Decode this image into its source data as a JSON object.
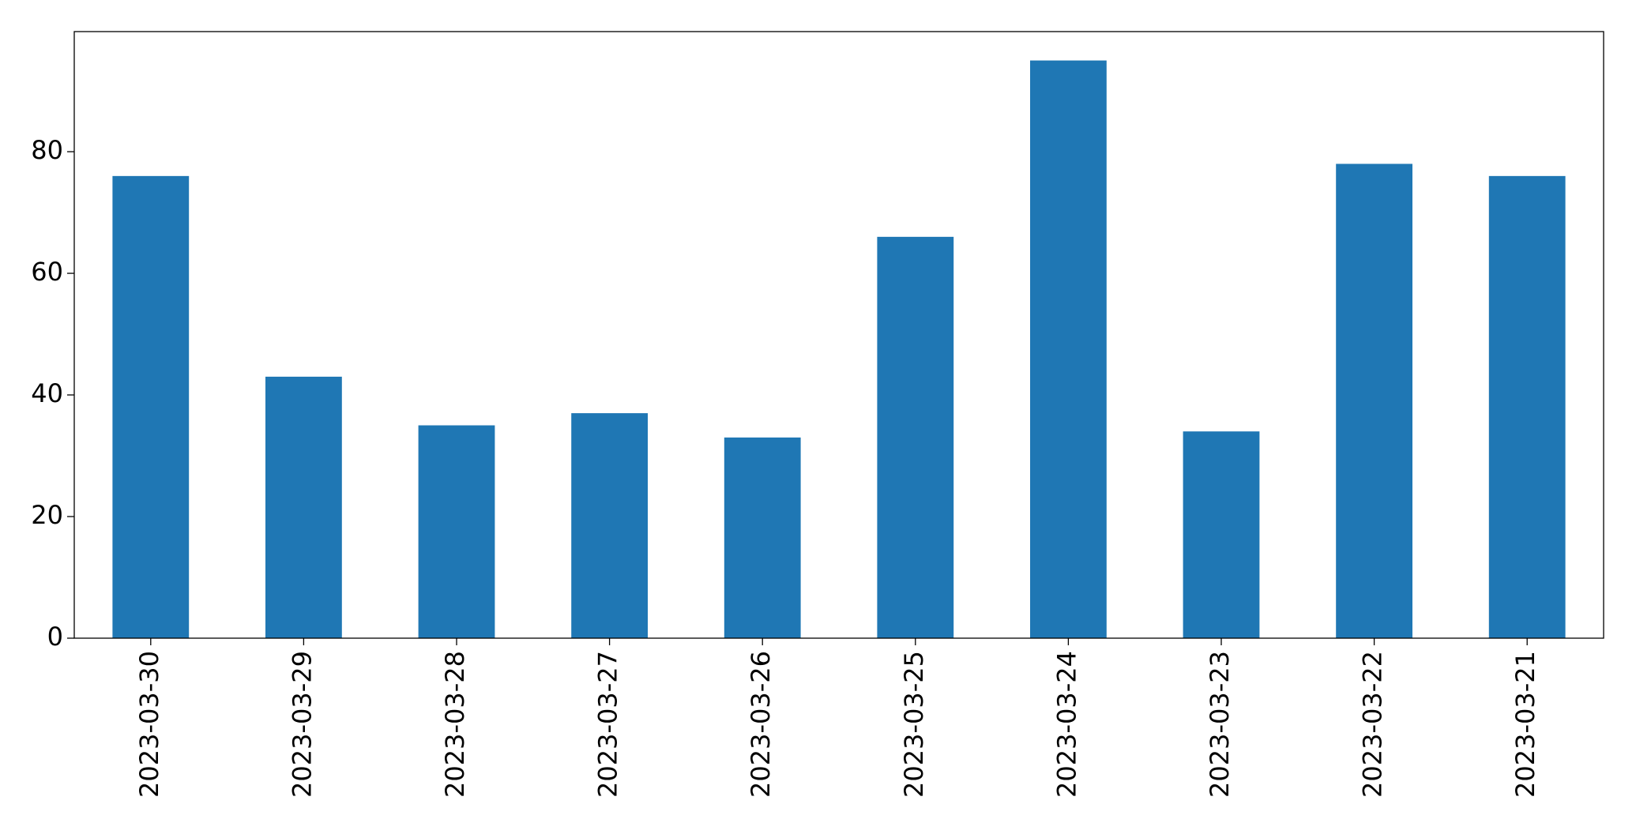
{
  "chart_data": {
    "type": "bar",
    "categories": [
      "2023-03-30",
      "2023-03-29",
      "2023-03-28",
      "2023-03-27",
      "2023-03-26",
      "2023-03-25",
      "2023-03-24",
      "2023-03-23",
      "2023-03-22",
      "2023-03-21"
    ],
    "values": [
      76,
      43,
      35,
      37,
      33,
      66,
      95,
      34,
      78,
      76
    ],
    "color": "#1f77b4",
    "ylim": [
      0,
      99.75
    ],
    "yticks": [
      0,
      20,
      40,
      60,
      80
    ],
    "grid": false
  }
}
